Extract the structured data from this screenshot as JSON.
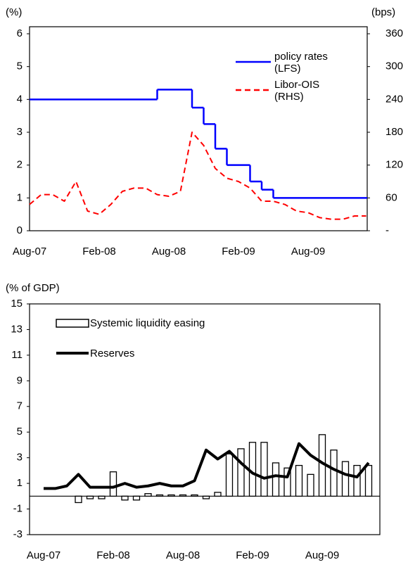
{
  "chart_data": [
    {
      "type": "line",
      "ylabel": "(%)",
      "y2label": "(bps)",
      "categories": [
        "Aug-07",
        null,
        null,
        null,
        null,
        null,
        "Feb-08",
        null,
        null,
        null,
        null,
        null,
        "Aug-08",
        null,
        null,
        null,
        null,
        null,
        "Feb-09",
        null,
        null,
        null,
        null,
        null,
        "Aug-09",
        null,
        null,
        null,
        null,
        null
      ],
      "series": [
        {
          "name": "policy rates (LFS)",
          "color": "#0000ff",
          "step": true,
          "values": [
            4,
            4,
            4,
            4,
            4,
            4,
            4,
            4,
            4,
            4,
            4,
            4.3,
            4.3,
            4.3,
            3.75,
            3.25,
            2.5,
            2.0,
            2.0,
            1.5,
            1.25,
            1.0,
            1.0,
            1.0,
            1.0,
            1.0,
            1.0,
            1.0,
            1.0,
            1.0
          ]
        },
        {
          "name": "Libor-OIS (RHS)",
          "color": "#ff0000",
          "dashed": true,
          "axis": "y2",
          "values": [
            48,
            66,
            66,
            54,
            90,
            36,
            30,
            48,
            72,
            78,
            78,
            66,
            63,
            72,
            180,
            156,
            114,
            96,
            90,
            78,
            54,
            54,
            48,
            36,
            33,
            24,
            21,
            21,
            27,
            27
          ]
        }
      ],
      "ylim": [
        0,
        6
      ],
      "yticks": [
        0,
        1,
        2,
        3,
        4,
        5,
        6
      ],
      "y2lim": [
        0,
        360
      ],
      "y2ticks": [
        {
          "value": 0,
          "label": "-"
        },
        60,
        120,
        180,
        240,
        300,
        360
      ]
    },
    {
      "type": "bar-line",
      "ylabel": "(% of GDP)",
      "categories": [
        "Aug-07",
        null,
        null,
        null,
        null,
        null,
        "Feb-08",
        null,
        null,
        null,
        null,
        null,
        "Aug-08",
        null,
        null,
        null,
        null,
        null,
        "Feb-09",
        null,
        null,
        null,
        null,
        null,
        "Aug-09",
        null,
        null,
        null,
        null
      ],
      "series": [
        {
          "name": "Systemic liquidity easing",
          "kind": "bar",
          "color": "#ffffff",
          "values": [
            0,
            0,
            0,
            -0.5,
            -0.2,
            -0.2,
            1.9,
            -0.3,
            -0.3,
            0.2,
            0.1,
            0.1,
            0.1,
            0.1,
            -0.2,
            0.3,
            3.3,
            3.7,
            4.2,
            4.2,
            2.6,
            2.2,
            2.4,
            1.7,
            4.8,
            3.6,
            2.7,
            2.4,
            2.4
          ]
        },
        {
          "name": "Reserves",
          "kind": "line",
          "color": "#000000",
          "values": [
            0.6,
            0.6,
            0.8,
            1.7,
            0.7,
            0.7,
            0.7,
            1.0,
            0.7,
            0.8,
            1.0,
            0.8,
            0.8,
            1.2,
            3.6,
            2.9,
            3.5,
            2.6,
            1.8,
            1.4,
            1.6,
            1.5,
            4.1,
            3.2,
            2.6,
            2.1,
            1.7,
            1.5,
            2.6
          ]
        }
      ],
      "ylim": [
        -3,
        15
      ],
      "yticks": [
        -3,
        -1,
        1,
        3,
        5,
        7,
        9,
        11,
        13,
        15
      ]
    }
  ]
}
